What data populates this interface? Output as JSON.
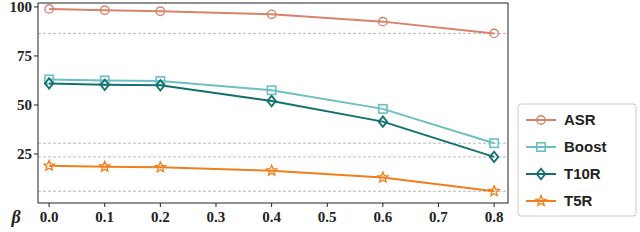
{
  "chart_data": {
    "type": "line",
    "x_label": "β",
    "x": [
      0.0,
      0.1,
      0.2,
      0.4,
      0.6,
      0.8
    ],
    "series": [
      {
        "name": "ASR",
        "color": "#d9826b",
        "marker": "circle",
        "values": [
          99,
          98.3,
          97.8,
          96.2,
          92.5,
          86.5
        ]
      },
      {
        "name": "Boost",
        "color": "#6cc0c0",
        "marker": "square",
        "values": [
          63,
          62.5,
          62.2,
          57.5,
          48,
          30.5
        ]
      },
      {
        "name": "T10R",
        "color": "#137070",
        "marker": "diamond",
        "values": [
          61,
          60.3,
          60,
          52,
          41.5,
          23.5
        ]
      },
      {
        "name": "T5R",
        "color": "#f07f1a",
        "marker": "star",
        "values": [
          19,
          18.5,
          18.2,
          16.5,
          13,
          6
        ]
      }
    ],
    "xlim": [
      -0.02,
      0.825
    ],
    "xticks": [
      {
        "value": 0,
        "label": "0.0"
      },
      {
        "value": 0.1,
        "label": "0.1"
      },
      {
        "value": 0.2,
        "label": "0.2"
      },
      {
        "value": 0.3,
        "label": "0.3"
      },
      {
        "value": 0.4,
        "label": "0.4"
      },
      {
        "value": 0.5,
        "label": "0.5"
      },
      {
        "value": 0.6,
        "label": "0.6"
      },
      {
        "value": 0.7,
        "label": "0.7"
      },
      {
        "value": 0.8,
        "label": "0.8"
      }
    ],
    "ylim": [
      0,
      102
    ],
    "yticks": [
      25,
      50,
      75,
      100
    ],
    "legend": "right"
  }
}
